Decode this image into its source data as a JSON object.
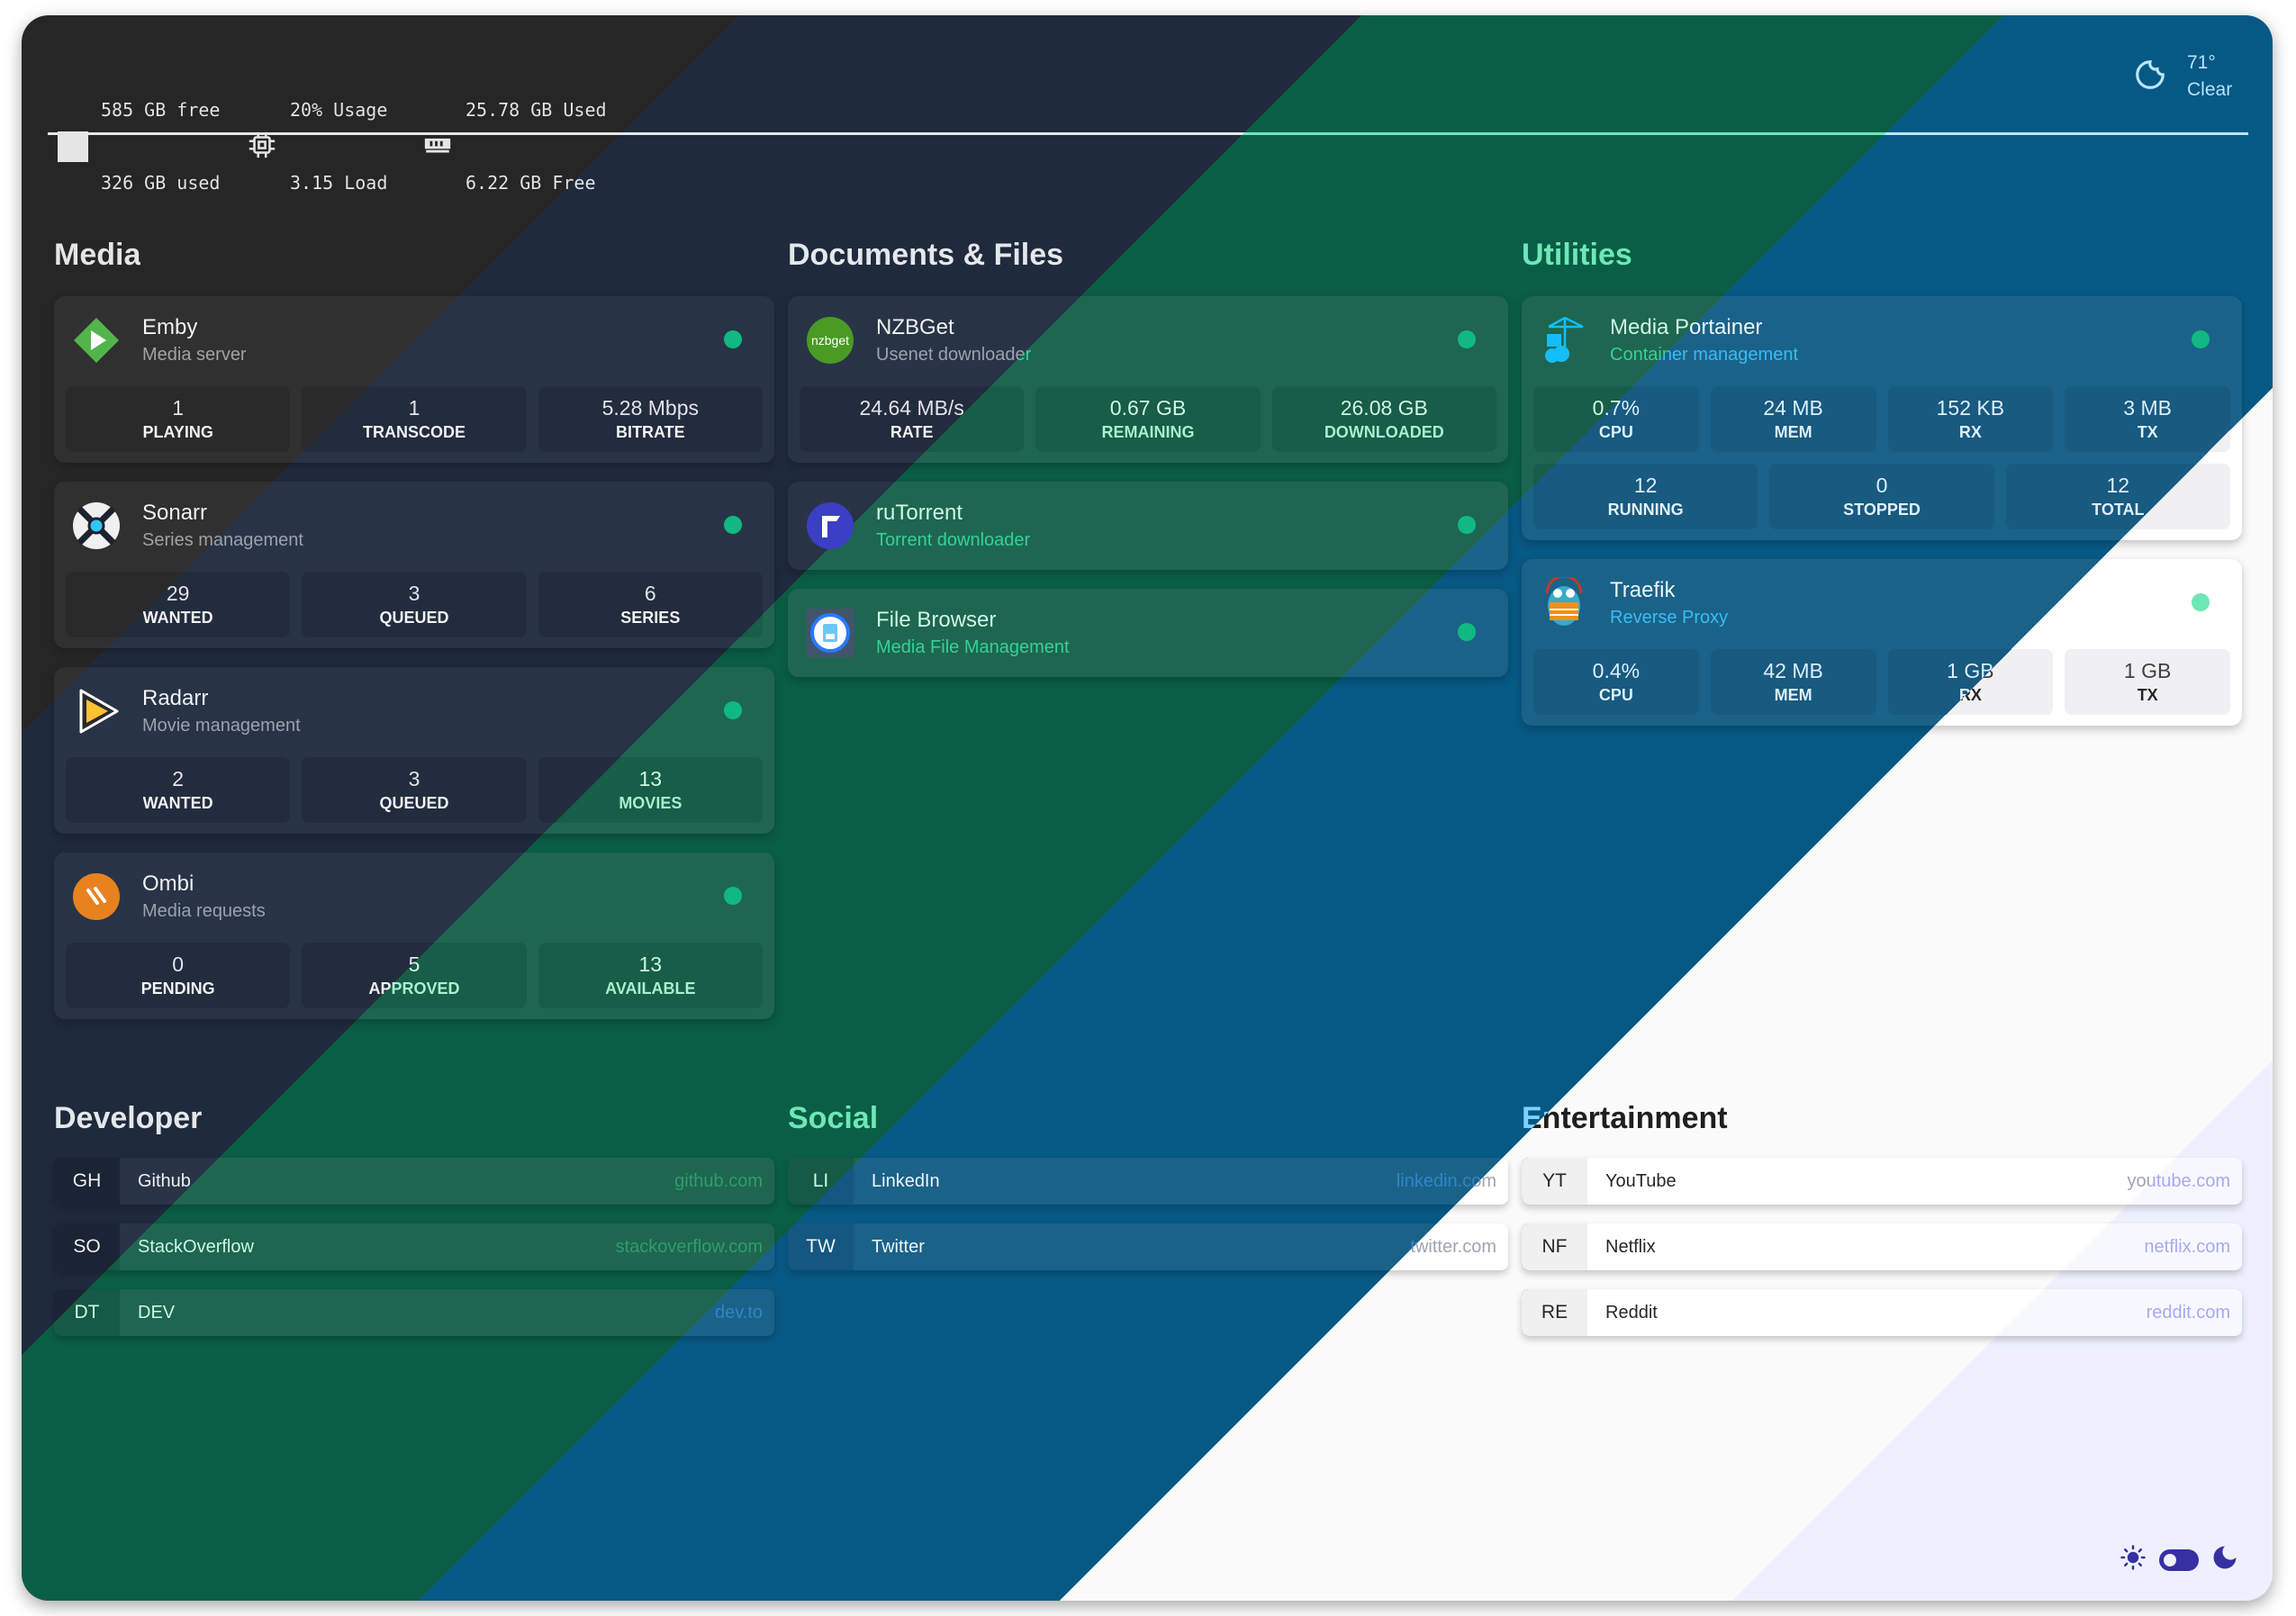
{
  "header": {
    "disk": {
      "icon": "hard-drive-icon",
      "line1": "585 GB free",
      "line2": "326 GB used"
    },
    "cpu": {
      "icon": "cpu-chip-icon",
      "line1": "20% Usage",
      "line2": "3.15 Load"
    },
    "ram": {
      "icon": "memory-icon",
      "line1": "25.78 GB Used",
      "line2": "6.22 GB Free"
    },
    "weather": {
      "icon": "moon-icon",
      "temp": "71°",
      "condition": "Clear"
    }
  },
  "sections": [
    {
      "title": "Media",
      "services": [
        {
          "name": "Emby",
          "subtitle": "Media server",
          "icon": "emby",
          "status": "online",
          "stats": [
            [
              {
                "value": "1",
                "label": "PLAYING"
              },
              {
                "value": "1",
                "label": "TRANSCODE"
              },
              {
                "value": "5.28 Mbps",
                "label": "BITRATE"
              }
            ]
          ]
        },
        {
          "name": "Sonarr",
          "subtitle": "Series management",
          "icon": "sonarr",
          "status": "online",
          "stats": [
            [
              {
                "value": "29",
                "label": "WANTED"
              },
              {
                "value": "3",
                "label": "QUEUED"
              },
              {
                "value": "6",
                "label": "SERIES"
              }
            ]
          ]
        },
        {
          "name": "Radarr",
          "subtitle": "Movie management",
          "icon": "radarr",
          "status": "online",
          "stats": [
            [
              {
                "value": "2",
                "label": "WANTED"
              },
              {
                "value": "3",
                "label": "QUEUED"
              },
              {
                "value": "13",
                "label": "MOVIES"
              }
            ]
          ]
        },
        {
          "name": "Ombi",
          "subtitle": "Media requests",
          "icon": "ombi",
          "status": "online",
          "stats": [
            [
              {
                "value": "0",
                "label": "PENDING"
              },
              {
                "value": "5",
                "label": "APPROVED"
              },
              {
                "value": "13",
                "label": "AVAILABLE"
              }
            ]
          ]
        }
      ]
    },
    {
      "title": "Documents & Files",
      "services": [
        {
          "name": "NZBGet",
          "subtitle": "Usenet downloader",
          "icon": "nzbget",
          "logo_text": "nzbget",
          "status": "online",
          "stats": [
            [
              {
                "value": "24.64 MB/s",
                "label": "RATE"
              },
              {
                "value": "0.67 GB",
                "label": "REMAINING"
              },
              {
                "value": "26.08 GB",
                "label": "DOWNLOADED"
              }
            ]
          ]
        },
        {
          "name": "ruTorrent",
          "subtitle": "Torrent downloader",
          "icon": "rutorrent",
          "status": "online",
          "stats": []
        },
        {
          "name": "File Browser",
          "subtitle": "Media File Management",
          "icon": "filebrowser",
          "status": "online",
          "stats": []
        }
      ]
    },
    {
      "title": "Utilities",
      "services": [
        {
          "name": "Media Portainer",
          "subtitle": "Container management",
          "icon": "portainer",
          "status": "online",
          "stats": [
            [
              {
                "value": "0.7%",
                "label": "CPU"
              },
              {
                "value": "24 MB",
                "label": "MEM"
              },
              {
                "value": "152 KB",
                "label": "RX"
              },
              {
                "value": "3 MB",
                "label": "TX"
              }
            ],
            [
              {
                "value": "12",
                "label": "RUNNING"
              },
              {
                "value": "0",
                "label": "STOPPED"
              },
              {
                "value": "12",
                "label": "TOTAL"
              }
            ]
          ]
        },
        {
          "name": "Traefik",
          "subtitle": "Reverse Proxy",
          "icon": "traefik",
          "status": "online",
          "stats": [
            [
              {
                "value": "0.4%",
                "label": "CPU"
              },
              {
                "value": "42 MB",
                "label": "MEM"
              },
              {
                "value": "1 GB",
                "label": "RX"
              },
              {
                "value": "1 GB",
                "label": "TX"
              }
            ]
          ]
        }
      ]
    }
  ],
  "bookmark_groups": [
    {
      "title": "Developer",
      "items": [
        {
          "abbr": "GH",
          "name": "Github",
          "url": "github.com"
        },
        {
          "abbr": "SO",
          "name": "StackOverflow",
          "url": "stackoverflow.com"
        },
        {
          "abbr": "DT",
          "name": "DEV",
          "url": "dev.to"
        }
      ]
    },
    {
      "title": "Social",
      "items": [
        {
          "abbr": "LI",
          "name": "LinkedIn",
          "url": "linkedin.com"
        },
        {
          "abbr": "TW",
          "name": "Twitter",
          "url": "twitter.com"
        }
      ]
    },
    {
      "title": "Entertainment",
      "items": [
        {
          "abbr": "YT",
          "name": "YouTube",
          "url": "youtube.com"
        },
        {
          "abbr": "NF",
          "name": "Netflix",
          "url": "netflix.com"
        },
        {
          "abbr": "RE",
          "name": "Reddit",
          "url": "reddit.com"
        }
      ]
    }
  ],
  "theme_toggle": {
    "light_icon": "sun-icon",
    "dark_icon": "moon-icon",
    "state": "dark"
  },
  "theme_palettes": {
    "page": [
      "#262626",
      "#1f2a3c",
      "#0a5e45",
      "#075985",
      "#fafafa",
      "#eef1fd"
    ],
    "card": [
      "#303030",
      "#283446",
      "#1e6650",
      "#1b6288",
      "#ffffff",
      "#f7f8ff"
    ],
    "box": [
      "#2a2a2a",
      "#222c3d",
      "#185d47",
      "#185a80",
      "#f0f0f3",
      "#eceffb"
    ],
    "abbr": [
      "#1f1f1f",
      "#1b2434",
      "#155a44",
      "#145780",
      "#f0f0f0",
      "#e8ebf8"
    ],
    "heading": [
      "#e5e5e5",
      "#e5e7eb",
      "#6ee7b7",
      "#7dd3fc",
      "#1f1f1f",
      "#312e81"
    ],
    "title": [
      "#f5f5f5",
      "#f3f4f6",
      "#d1fae5",
      "#f0f9ff",
      "#262626",
      "#312e81"
    ],
    "sub": [
      "#a3a3a3",
      "#9ca3af",
      "#34d399",
      "#38bdf8",
      "#737373",
      "#818cf8"
    ],
    "value": [
      "#e5e5e5",
      "#e5e7eb",
      "#d1fae5",
      "#e0f2fe",
      "#404040",
      "#3730a3"
    ],
    "label": [
      "#f5f5f5",
      "#f3f4f6",
      "#a7f3d0",
      "#e0f2fe",
      "#262626",
      "#312e81"
    ],
    "url": [
      "#737373",
      "#64748b",
      "#2f9e6b",
      "#2f86c8",
      "#9ca3af",
      "#a5a8f0"
    ],
    "dot": [
      "#10b981",
      "#10b981",
      "#10b981",
      "#10b981",
      "#6ee7b7",
      "#6ee7b7"
    ],
    "header": [
      "#e5e5e5",
      "#e5e7eb",
      "#d1fae5",
      "#bae6fd",
      "#262626",
      "#312e81"
    ],
    "rule": [
      "#e5e5e5",
      "#e5e7eb",
      "#6ee7b7",
      "#bae6fd",
      "#d4d4d4",
      "#c7d2fe"
    ]
  }
}
